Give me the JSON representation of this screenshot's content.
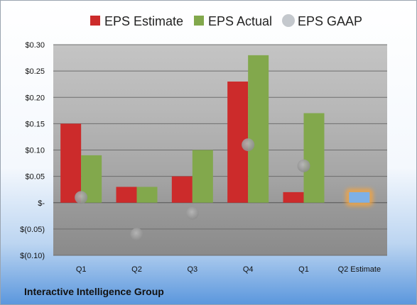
{
  "company": "Interactive Intelligence Group",
  "chart_data": {
    "type": "bar",
    "categories": [
      "Q1",
      "Q2",
      "Q3",
      "Q4",
      "Q1",
      "Q2 Estimate"
    ],
    "series": [
      {
        "name": "EPS Estimate",
        "color": "#cc2b2b",
        "values": [
          0.15,
          0.03,
          0.05,
          0.23,
          0.02,
          null
        ]
      },
      {
        "name": "EPS Actual",
        "color": "#82a84c",
        "values": [
          0.09,
          0.03,
          0.1,
          0.28,
          0.17,
          null
        ]
      },
      {
        "name": "EPS GAAP",
        "color": "#a3a3a3",
        "kind": "marker",
        "values": [
          0.01,
          -0.06,
          -0.02,
          0.11,
          0.07,
          null
        ]
      }
    ],
    "forecast": {
      "category": "Q2 Estimate",
      "value": 0.02,
      "color": "#7eb0e6",
      "glow": "#f0a445"
    },
    "ylim": [
      -0.1,
      0.3
    ],
    "yticks": [
      0.3,
      0.25,
      0.2,
      0.15,
      0.1,
      0.05,
      0,
      -0.05,
      -0.1
    ],
    "ytick_labels": [
      "$0.30",
      "$0.25",
      "$0.20",
      "$0.15",
      "$0.10",
      "$0.05",
      "$-",
      "$(0.05)",
      "$(0.10)"
    ],
    "legend_position": "top",
    "grid": true
  }
}
